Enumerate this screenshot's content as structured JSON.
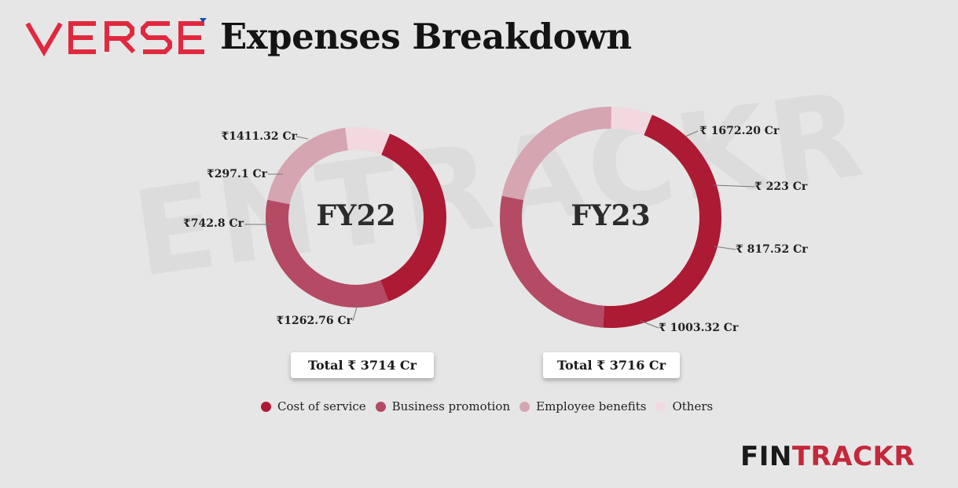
{
  "header": {
    "logo_text": "VERSE",
    "title": "Expenses Breakdown"
  },
  "watermark": "ENTRACKR",
  "brand": {
    "part1": "FIN",
    "part2": "TRACKR",
    "color1": "#1a1a1a",
    "color2": "#c4283a"
  },
  "colors": {
    "logo": "#e0293e"
  },
  "chart_data": [
    {
      "type": "pie",
      "donut": true,
      "center_label": "FY22",
      "categories": [
        "Cost of service",
        "Business promotion",
        "Employee benefits",
        "Others"
      ],
      "values": [
        1411.32,
        1262.76,
        742.8,
        297.1
      ],
      "value_labels": [
        "₹1411.32 Cr",
        "₹1262.76 Cr",
        "₹742.8 Cr",
        "₹297.1 Cr"
      ],
      "colors": [
        "#ad1a33",
        "#b44a63",
        "#d5a5b1",
        "#f1d9df"
      ],
      "total_label": "Total ₹ 3714 Cr"
    },
    {
      "type": "pie",
      "donut": true,
      "center_label": "FY23",
      "categories": [
        "Cost of service",
        "Business promotion",
        "Employee benefits",
        "Others"
      ],
      "values": [
        1672.2,
        1003.32,
        817.52,
        223
      ],
      "value_labels": [
        "₹ 1672.20 Cr",
        "₹ 1003.32 Cr",
        "₹ 817.52 Cr",
        "₹ 223 Cr"
      ],
      "colors": [
        "#ad1a33",
        "#b44a63",
        "#d5a5b1",
        "#f1d9df"
      ],
      "total_label": "Total ₹ 3716 Cr"
    }
  ],
  "legend": [
    {
      "label": "Cost of service",
      "color": "#ad1a33"
    },
    {
      "label": "Business promotion",
      "color": "#b44a63"
    },
    {
      "label": "Employee benefits",
      "color": "#d5a5b1"
    },
    {
      "label": "Others",
      "color": "#f1d9df"
    }
  ]
}
